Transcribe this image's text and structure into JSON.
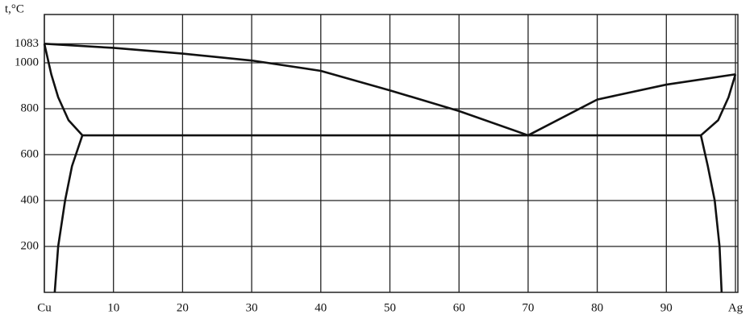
{
  "chart_data": {
    "type": "line",
    "y_label": "t,°C",
    "xlim": [
      0,
      100
    ],
    "ylim": [
      0,
      1200
    ],
    "xticks": [
      {
        "value": 0,
        "label": "Cu"
      },
      10,
      20,
      30,
      40,
      50,
      60,
      70,
      80,
      90,
      {
        "value": 100,
        "label": "Ag"
      }
    ],
    "yticks": [
      200,
      400,
      600,
      800,
      1000,
      1083
    ],
    "grid": true,
    "color": "#111111",
    "series": [
      {
        "x": [
          0,
          10,
          20,
          30,
          40,
          50,
          60,
          70
        ],
        "values": [
          1083,
          1065,
          1040,
          1010,
          965,
          880,
          790,
          684
        ]
      },
      {
        "x": [
          70,
          80,
          90,
          100
        ],
        "values": [
          684,
          840,
          905,
          950
        ]
      },
      {
        "x": [
          5.5,
          95
        ],
        "values": [
          684,
          684
        ]
      },
      {
        "x": [
          0,
          1,
          2,
          3.5,
          5.5
        ],
        "values": [
          1083,
          950,
          850,
          750,
          684
        ]
      },
      {
        "x": [
          5.5,
          4,
          3,
          2,
          1.5
        ],
        "values": [
          684,
          550,
          400,
          200,
          0
        ]
      },
      {
        "x": [
          100,
          99,
          97.5,
          95
        ],
        "values": [
          950,
          850,
          750,
          684
        ]
      },
      {
        "x": [
          95,
          96,
          97,
          97.7,
          98
        ],
        "values": [
          684,
          550,
          400,
          200,
          0
        ]
      }
    ]
  }
}
